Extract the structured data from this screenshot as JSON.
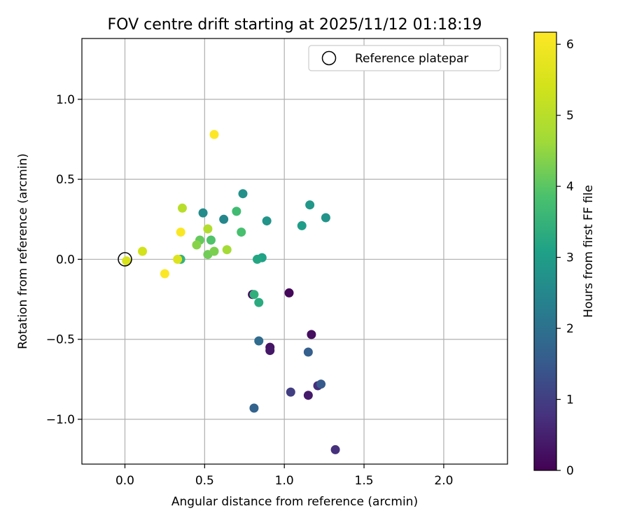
{
  "chart_data": {
    "type": "scatter",
    "title": "FOV centre drift starting at 2025/11/12 01:18:19",
    "xlabel": "Angular distance from reference (arcmin)",
    "ylabel": "Rotation from reference (arcmin)",
    "xlim": [
      -0.27,
      2.4
    ],
    "ylim": [
      -1.28,
      1.38
    ],
    "xticks": [
      0.0,
      0.5,
      1.0,
      1.5,
      2.0
    ],
    "xtick_labels": [
      "0.0",
      "0.5",
      "1.0",
      "1.5",
      "2.0"
    ],
    "yticks": [
      -1.0,
      -0.5,
      0.0,
      0.5,
      1.0
    ],
    "ytick_labels": [
      "−1.0",
      "−0.5",
      "0.0",
      "0.5",
      "1.0"
    ],
    "grid": true,
    "legend": {
      "placement": "top-right",
      "entries": [
        "Reference platepar"
      ]
    },
    "reference_point": {
      "x": 0.0,
      "y": 0.0,
      "label": "Reference platepar"
    },
    "colorbar": {
      "label": "Hours from first FF file",
      "colormap": "viridis",
      "range": [
        0,
        6.17
      ],
      "ticks": [
        0,
        1,
        2,
        3,
        4,
        5,
        6
      ],
      "tick_labels": [
        "0",
        "1",
        "2",
        "3",
        "4",
        "5",
        "6"
      ]
    },
    "points": [
      {
        "x": 0.8,
        "y": -0.22,
        "hours": 0.05
      },
      {
        "x": 1.03,
        "y": -0.21,
        "hours": 0.1
      },
      {
        "x": 1.17,
        "y": -0.47,
        "hours": 0.2
      },
      {
        "x": 0.91,
        "y": -0.55,
        "hours": 0.3
      },
      {
        "x": 0.91,
        "y": -0.57,
        "hours": 0.35
      },
      {
        "x": 1.15,
        "y": -0.85,
        "hours": 0.4
      },
      {
        "x": 1.21,
        "y": -0.79,
        "hours": 0.7
      },
      {
        "x": 1.32,
        "y": -1.19,
        "hours": 0.75
      },
      {
        "x": 1.04,
        "y": -0.83,
        "hours": 1.0
      },
      {
        "x": 1.23,
        "y": -0.78,
        "hours": 1.5
      },
      {
        "x": 1.15,
        "y": -0.58,
        "hours": 1.6
      },
      {
        "x": 0.81,
        "y": -0.93,
        "hours": 1.7
      },
      {
        "x": 0.84,
        "y": -0.51,
        "hours": 1.9
      },
      {
        "x": 0.62,
        "y": 0.25,
        "hours": 2.5
      },
      {
        "x": 0.49,
        "y": 0.29,
        "hours": 2.6
      },
      {
        "x": 0.74,
        "y": 0.41,
        "hours": 2.7
      },
      {
        "x": 0.89,
        "y": 0.24,
        "hours": 2.8
      },
      {
        "x": 1.26,
        "y": 0.26,
        "hours": 2.8
      },
      {
        "x": 1.16,
        "y": 0.34,
        "hours": 2.85
      },
      {
        "x": 1.11,
        "y": 0.21,
        "hours": 3.0
      },
      {
        "x": 0.86,
        "y": 0.01,
        "hours": 3.1
      },
      {
        "x": 0.83,
        "y": 0.0,
        "hours": 3.2
      },
      {
        "x": 0.84,
        "y": -0.27,
        "hours": 3.3
      },
      {
        "x": 0.81,
        "y": -0.22,
        "hours": 3.4
      },
      {
        "x": 0.35,
        "y": 0.0,
        "hours": 3.5
      },
      {
        "x": 0.7,
        "y": 0.3,
        "hours": 3.7
      },
      {
        "x": 0.73,
        "y": 0.17,
        "hours": 3.8
      },
      {
        "x": 0.54,
        "y": 0.12,
        "hours": 3.9
      },
      {
        "x": 0.47,
        "y": 0.12,
        "hours": 4.1
      },
      {
        "x": 0.52,
        "y": 0.03,
        "hours": 4.2
      },
      {
        "x": 0.56,
        "y": 0.05,
        "hours": 4.3
      },
      {
        "x": 0.45,
        "y": 0.09,
        "hours": 4.4
      },
      {
        "x": 0.64,
        "y": 0.06,
        "hours": 4.7
      },
      {
        "x": 0.52,
        "y": 0.19,
        "hours": 4.9
      },
      {
        "x": 0.36,
        "y": 0.32,
        "hours": 5.0
      },
      {
        "x": 0.11,
        "y": 0.05,
        "hours": 5.4
      },
      {
        "x": 0.01,
        "y": -0.01,
        "hours": 5.5
      },
      {
        "x": 0.33,
        "y": 0.0,
        "hours": 5.6
      },
      {
        "x": 0.35,
        "y": 0.17,
        "hours": 6.1
      },
      {
        "x": 0.25,
        "y": -0.09,
        "hours": 6.15
      },
      {
        "x": 0.56,
        "y": 0.78,
        "hours": 6.17
      }
    ]
  }
}
